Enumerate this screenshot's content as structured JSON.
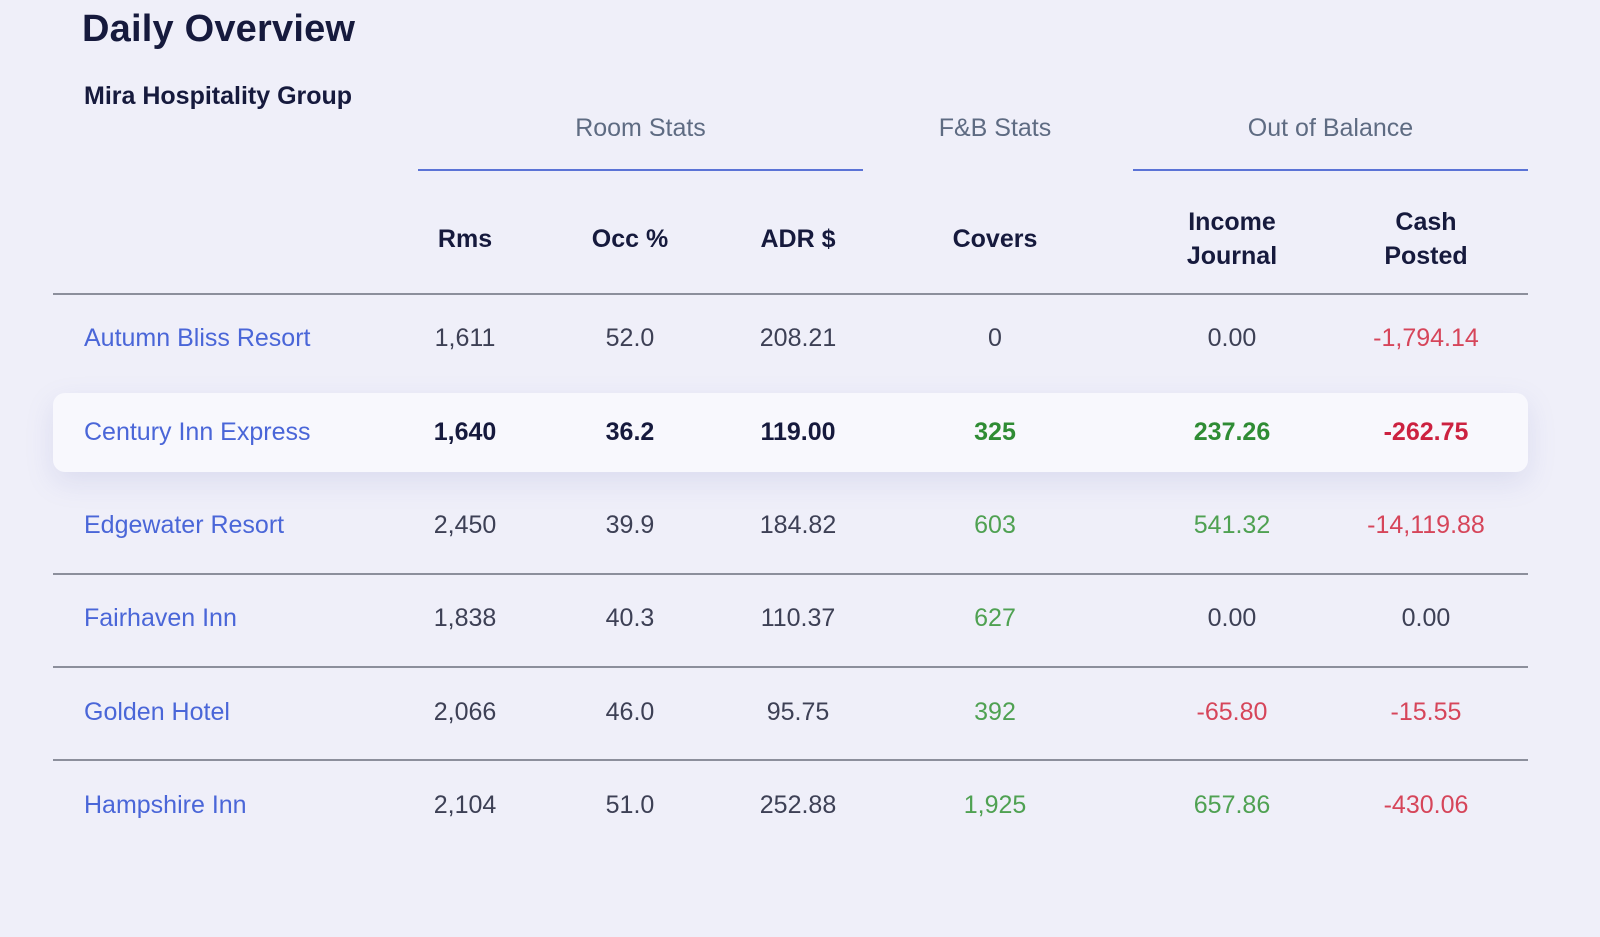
{
  "header": {
    "title": "Daily Overview",
    "subtitle": "Mira Hospitality Group"
  },
  "groups": {
    "room_stats": "Room Stats",
    "fb_stats": "F&B Stats",
    "out_of_balance": "Out of Balance"
  },
  "columns": {
    "rms": "Rms",
    "occ": "Occ %",
    "adr": "ADR $",
    "covers": "Covers",
    "income_line1": "Income",
    "income_line2": "Journal",
    "cash_line1": "Cash",
    "cash_line2": "Posted"
  },
  "rows": [
    {
      "name": "Autumn Bliss Resort",
      "rms": "1,611",
      "occ": "52.0",
      "adr": "208.21",
      "covers": "0",
      "covers_tone": "neutral",
      "income": "0.00",
      "income_tone": "neutral",
      "cash": "-1,794.14",
      "cash_tone": "neg"
    },
    {
      "name": "Century Inn Express",
      "rms": "1,640",
      "occ": "36.2",
      "adr": "119.00",
      "covers": "325",
      "covers_tone": "pos",
      "income": "237.26",
      "income_tone": "pos",
      "cash": "-262.75",
      "cash_tone": "neg",
      "highlighted": true
    },
    {
      "name": "Edgewater Resort",
      "rms": "2,450",
      "occ": "39.9",
      "adr": "184.82",
      "covers": "603",
      "covers_tone": "pos",
      "income": "541.32",
      "income_tone": "pos",
      "cash": "-14,119.88",
      "cash_tone": "neg"
    },
    {
      "name": "Fairhaven Inn",
      "rms": "1,838",
      "occ": "40.3",
      "adr": "110.37",
      "covers": "627",
      "covers_tone": "pos",
      "income": "0.00",
      "income_tone": "neutral",
      "cash": "0.00",
      "cash_tone": "neutral"
    },
    {
      "name": "Golden Hotel",
      "rms": "2,066",
      "occ": "46.0",
      "adr": "95.75",
      "covers": "392",
      "covers_tone": "pos",
      "income": "-65.80",
      "income_tone": "neg",
      "cash": "-15.55",
      "cash_tone": "neg"
    },
    {
      "name": "Hampshire Inn",
      "rms": "2,104",
      "occ": "51.0",
      "adr": "252.88",
      "covers": "1,925",
      "covers_tone": "pos",
      "income": "657.86",
      "income_tone": "pos",
      "cash": "-430.06",
      "cash_tone": "neg"
    }
  ]
}
